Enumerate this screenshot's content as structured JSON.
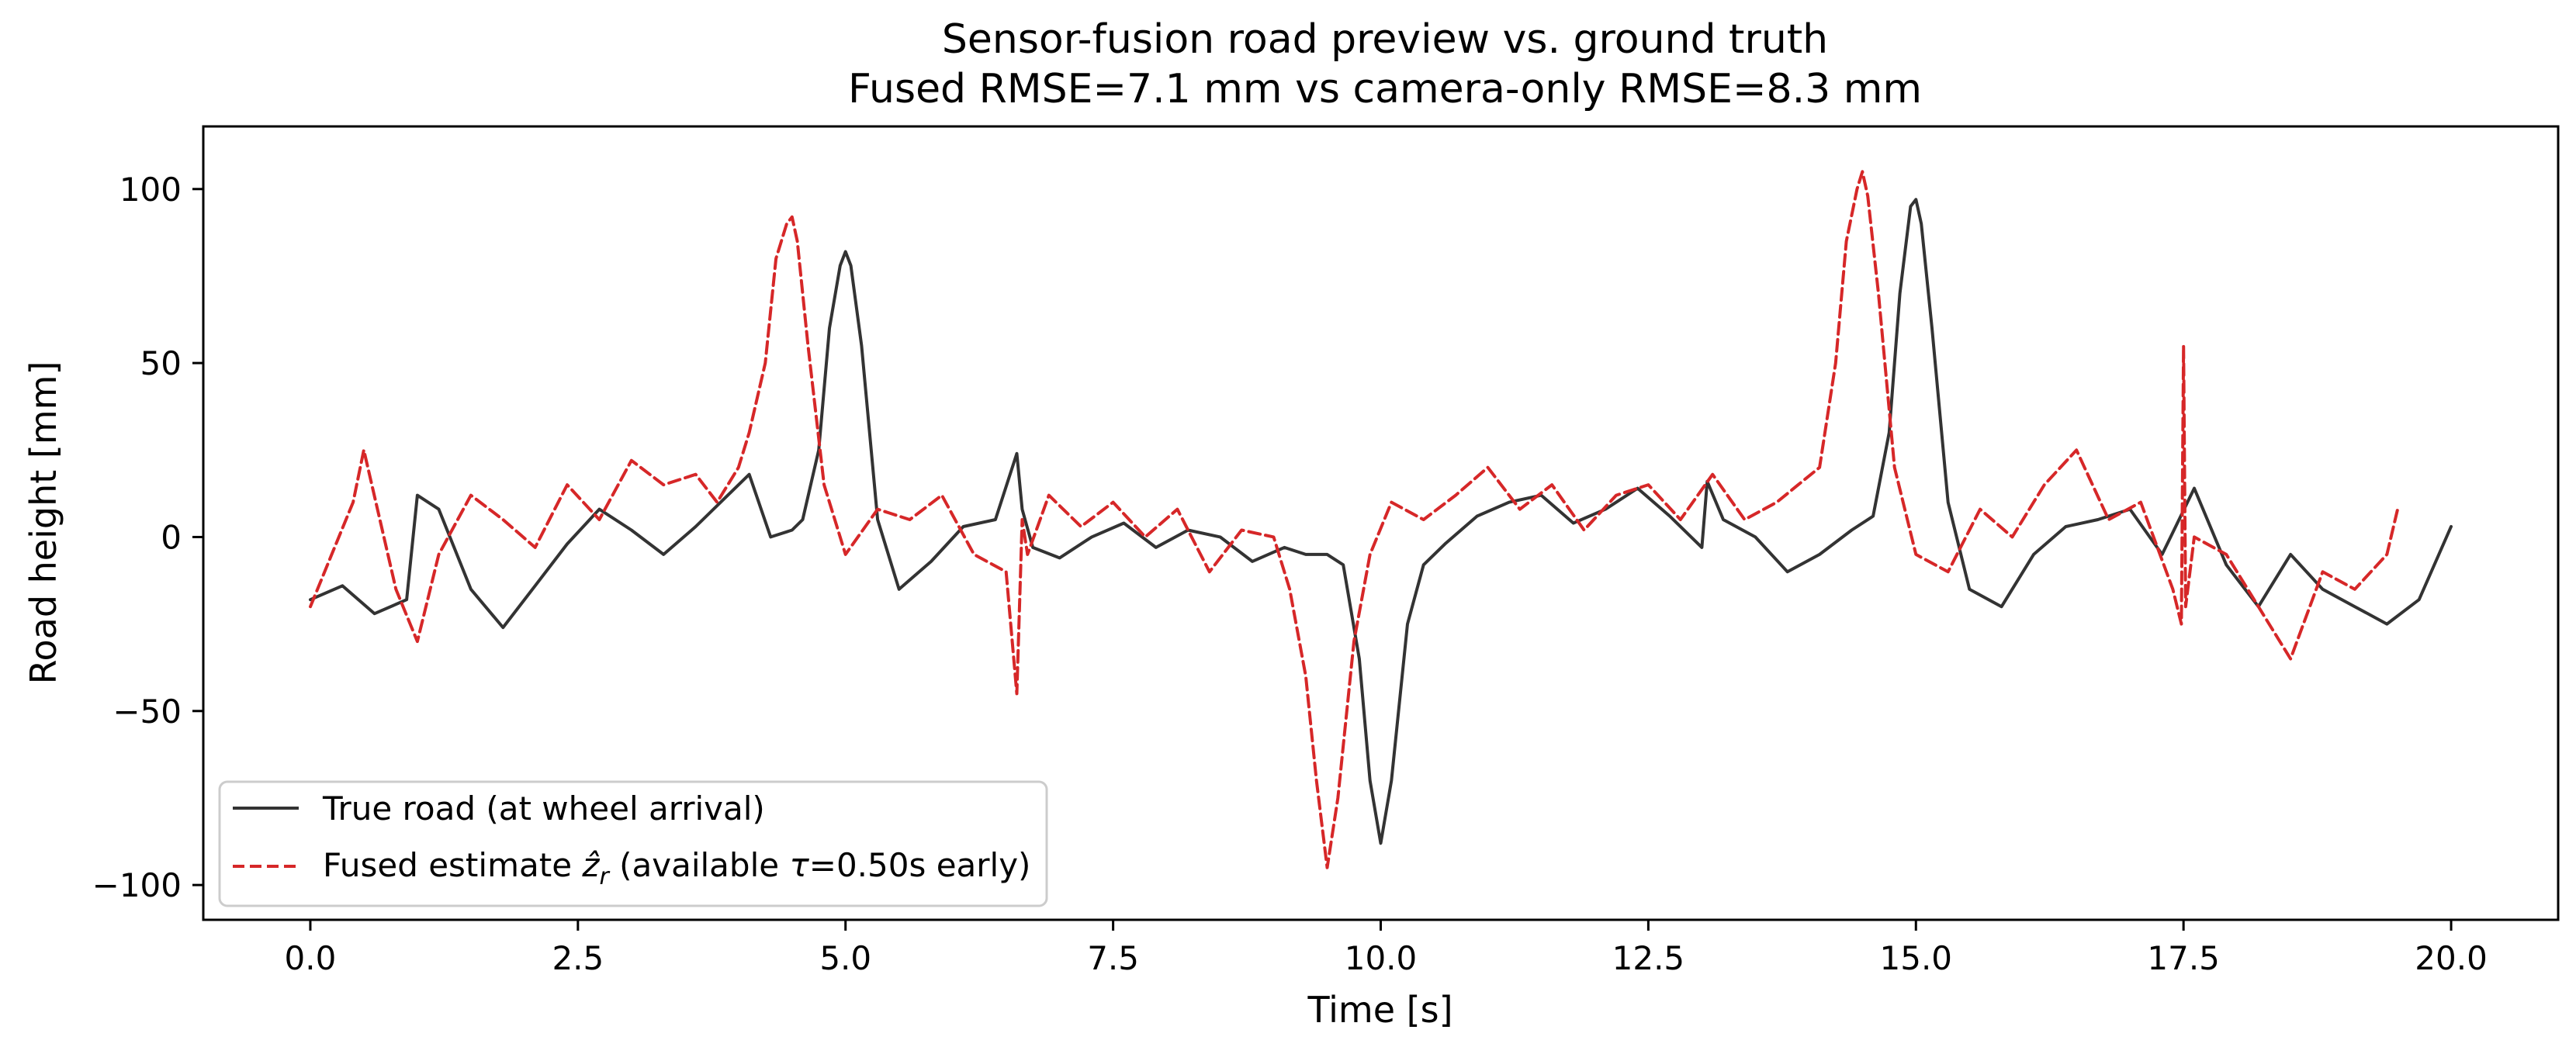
{
  "chart_data": {
    "type": "line",
    "title": "Sensor-fusion road preview vs. ground truth",
    "subtitle": "Fused RMSE=7.1 mm vs camera-only RMSE=8.3 mm",
    "xlabel": "Time [s]",
    "ylabel": "Road height [mm]",
    "xlim": [
      -1.0,
      21.0
    ],
    "ylim": [
      -110,
      118
    ],
    "xticks": [
      0.0,
      2.5,
      5.0,
      7.5,
      10.0,
      12.5,
      15.0,
      17.5,
      20.0
    ],
    "xtick_labels": [
      "0.0",
      "2.5",
      "5.0",
      "7.5",
      "10.0",
      "12.5",
      "15.0",
      "17.5",
      "20.0"
    ],
    "yticks": [
      -100,
      -50,
      0,
      50,
      100
    ],
    "ytick_labels": [
      "−100",
      "−50",
      "0",
      "50",
      "100"
    ],
    "grid": false,
    "legend_position": "lower-left",
    "series": [
      {
        "name": "True road (at wheel arrival)",
        "color": "#333333",
        "style": "solid",
        "x": [
          0.0,
          0.3,
          0.6,
          0.9,
          1.0,
          1.2,
          1.5,
          1.8,
          2.1,
          2.4,
          2.7,
          3.0,
          3.3,
          3.6,
          3.9,
          4.1,
          4.3,
          4.5,
          4.6,
          4.75,
          4.85,
          4.95,
          5.0,
          5.05,
          5.15,
          5.3,
          5.5,
          5.8,
          6.1,
          6.4,
          6.6,
          6.65,
          6.75,
          7.0,
          7.3,
          7.6,
          7.9,
          8.2,
          8.5,
          8.8,
          9.1,
          9.3,
          9.5,
          9.65,
          9.8,
          9.9,
          10.0,
          10.1,
          10.25,
          10.4,
          10.6,
          10.9,
          11.2,
          11.5,
          11.8,
          12.1,
          12.4,
          12.7,
          13.0,
          13.05,
          13.2,
          13.5,
          13.8,
          14.1,
          14.4,
          14.6,
          14.75,
          14.85,
          14.95,
          15.0,
          15.05,
          15.15,
          15.3,
          15.5,
          15.8,
          16.1,
          16.4,
          16.7,
          17.0,
          17.3,
          17.6,
          17.9,
          18.2,
          18.5,
          18.8,
          19.1,
          19.4,
          19.7,
          20.0
        ],
        "values": [
          -18,
          -14,
          -22,
          -18,
          12,
          8,
          -15,
          -26,
          -14,
          -2,
          8,
          2,
          -5,
          3,
          12,
          18,
          0,
          2,
          5,
          25,
          60,
          78,
          82,
          78,
          55,
          5,
          -15,
          -7,
          3,
          5,
          24,
          8,
          -3,
          -6,
          0,
          4,
          -3,
          2,
          0,
          -7,
          -3,
          -5,
          -5,
          -8,
          -35,
          -70,
          -88,
          -70,
          -25,
          -8,
          -2,
          6,
          10,
          12,
          4,
          8,
          14,
          6,
          -3,
          16,
          5,
          0,
          -10,
          -5,
          2,
          6,
          30,
          70,
          95,
          97,
          90,
          60,
          10,
          -15,
          -20,
          -5,
          3,
          5,
          8,
          -5,
          14,
          -8,
          -20,
          -5,
          -15,
          -20,
          -25,
          -18,
          3
        ]
      },
      {
        "name": "Fused estimate $\\hat{z}_r$ (available $\\tau$=0.50s early)",
        "color": "#d62728",
        "style": "dashed",
        "x": [
          0.0,
          0.2,
          0.4,
          0.5,
          0.65,
          0.8,
          1.0,
          1.2,
          1.5,
          1.8,
          2.1,
          2.4,
          2.7,
          3.0,
          3.3,
          3.6,
          3.8,
          4.0,
          4.1,
          4.25,
          4.35,
          4.45,
          4.5,
          4.55,
          4.65,
          4.8,
          5.0,
          5.3,
          5.6,
          5.9,
          6.2,
          6.5,
          6.6,
          6.65,
          6.7,
          6.9,
          7.2,
          7.5,
          7.8,
          8.1,
          8.4,
          8.7,
          9.0,
          9.15,
          9.3,
          9.4,
          9.5,
          9.6,
          9.75,
          9.9,
          10.1,
          10.4,
          10.7,
          11.0,
          11.3,
          11.6,
          11.9,
          12.2,
          12.5,
          12.8,
          13.1,
          13.4,
          13.7,
          13.9,
          14.1,
          14.25,
          14.35,
          14.45,
          14.5,
          14.55,
          14.65,
          14.8,
          15.0,
          15.3,
          15.6,
          15.9,
          16.2,
          16.5,
          16.8,
          17.1,
          17.4,
          17.48,
          17.5,
          17.52,
          17.6,
          17.9,
          18.2,
          18.5,
          18.8,
          19.1,
          19.4,
          19.5
        ],
        "values": [
          -20,
          -5,
          10,
          25,
          5,
          -15,
          -30,
          -5,
          12,
          5,
          -3,
          15,
          5,
          22,
          15,
          18,
          10,
          20,
          30,
          50,
          80,
          90,
          92,
          85,
          55,
          15,
          -5,
          8,
          5,
          12,
          -5,
          -10,
          -45,
          5,
          -5,
          12,
          3,
          10,
          0,
          8,
          -10,
          2,
          0,
          -15,
          -40,
          -70,
          -95,
          -75,
          -30,
          -5,
          10,
          5,
          12,
          20,
          8,
          15,
          2,
          12,
          15,
          5,
          18,
          5,
          10,
          15,
          20,
          50,
          85,
          100,
          105,
          98,
          70,
          20,
          -5,
          -10,
          8,
          0,
          15,
          25,
          5,
          10,
          -15,
          -25,
          55,
          -20,
          0,
          -5,
          -20,
          -35,
          -10,
          -15,
          -5,
          8
        ]
      }
    ]
  }
}
